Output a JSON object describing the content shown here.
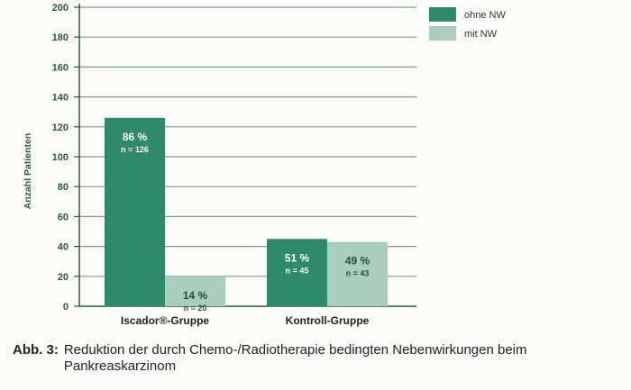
{
  "chart_data": {
    "type": "bar",
    "categories": [
      "Iscador®-Gruppe",
      "Kontroll-Gruppe"
    ],
    "series": [
      {
        "name": "ohne NW",
        "values": [
          126,
          45
        ],
        "percent_labels": [
          "86 %",
          "51 %"
        ],
        "n_labels": [
          "n = 126",
          "n = 45"
        ]
      },
      {
        "name": "mit NW",
        "values": [
          20,
          43
        ],
        "percent_labels": [
          "14 %",
          "49 %"
        ],
        "n_labels": [
          "n = 20",
          "n = 43"
        ]
      }
    ],
    "ylabel": "Anzahl Patienten",
    "xlabel": "",
    "ylim": [
      0,
      200
    ],
    "yticks": [
      0,
      20,
      40,
      60,
      80,
      100,
      120,
      140,
      160,
      180,
      200
    ],
    "grid": true,
    "legend_position": "top-right",
    "colors": {
      "ohne NW": "#2e8a6a",
      "mit NW": "#aacdbd",
      "axis": "#2c5a40",
      "grid": "#7d9c89"
    }
  },
  "caption": {
    "prefix": "Abb. 3:",
    "text": "Reduktion der durch Chemo-/Radiotherapie bedingten Nebenwirkungen beim Pankreaskarzinom"
  }
}
